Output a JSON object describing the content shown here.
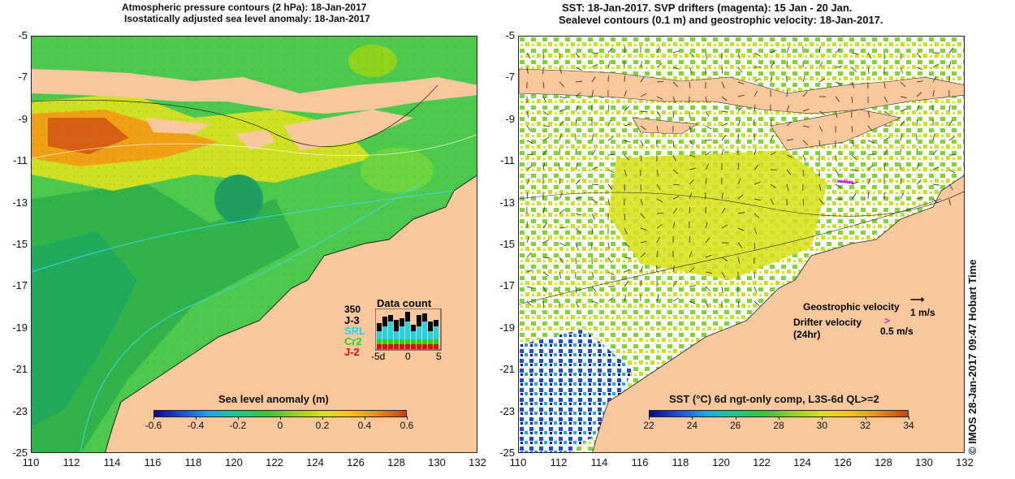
{
  "left_panel": {
    "title_line1": "Atmospheric pressure contours (2 hPa): 18-Jan-2017",
    "title_line2": "Isostatically adjusted sea level anomaly: 18-Jan-2017",
    "colorbar": {
      "title": "Sea level anomaly (m)",
      "ticks": [
        "-0.6",
        "-0.4",
        "-0.2",
        "0",
        "0.2",
        "0.4",
        "0.6"
      ],
      "colors": [
        "#0a0a8c",
        "#1f4fd6",
        "#1fa8e6",
        "#22c88a",
        "#38c238",
        "#8fd41c",
        "#d8e01a",
        "#f5c512",
        "#f0880e",
        "#c84010"
      ]
    },
    "data_count": {
      "title": "Data count",
      "max_label": "350",
      "satellites": [
        "J-3",
        "SRL",
        "Cr2",
        "J-2"
      ],
      "satellite_colors": [
        "#000000",
        "#22d4e6",
        "#22d422",
        "#e01010"
      ],
      "x_ticks": [
        "-5d",
        "0",
        "5"
      ]
    }
  },
  "right_panel": {
    "title_line1": "SST: 18-Jan-2017. SVP drifters (magenta): 15 Jan - 20 Jan.",
    "title_line2": "Sealevel contours (0.1 m) and geostrophic velocity: 18-Jan-2017.",
    "colorbar": {
      "title": "SST (°C) 6d ngt-only comp, L3S-6d QL>=2",
      "ticks": [
        "22",
        "24",
        "26",
        "28",
        "30",
        "32",
        "34"
      ],
      "colors": [
        "#0a0a8c",
        "#1f4fd6",
        "#1fa8e6",
        "#22c88a",
        "#38c238",
        "#8fd41c",
        "#d8e01a",
        "#f5c512",
        "#f0880e",
        "#c84010"
      ]
    },
    "legend": {
      "geostrophic_label": "Geostrophic velocity",
      "geostrophic_scale": "1 m/s",
      "drifter_label": "Drifter velocity",
      "drifter_sub": "(24hr)",
      "drifter_scale": "0.5 m/s"
    }
  },
  "axes": {
    "y_ticks": [
      "-5",
      "-7",
      "-9",
      "-11",
      "-13",
      "-15",
      "-17",
      "-19",
      "-21",
      "-23",
      "-25"
    ],
    "x_ticks": [
      "110",
      "112",
      "114",
      "116",
      "118",
      "120",
      "122",
      "124",
      "126",
      "128",
      "130",
      "132"
    ]
  },
  "credit": "© IMOS 28-Jan-2017 09:47 Hobart Time",
  "colors": {
    "land": "#f7c79d",
    "ocean_green": "#4cc84c"
  }
}
